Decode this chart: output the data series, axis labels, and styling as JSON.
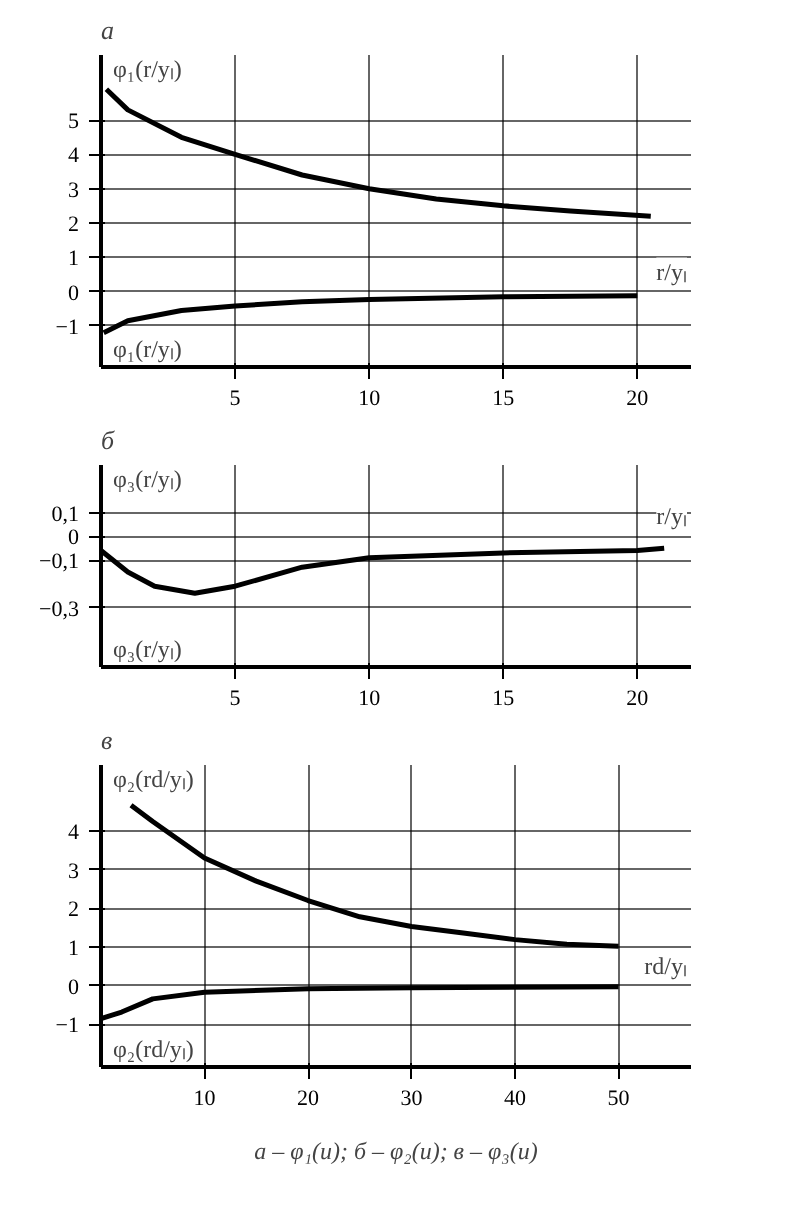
{
  "chart_data": [
    {
      "type": "line",
      "title": "а",
      "ylabel": "φ₁(r/yₗ)",
      "xlabel": "r/yₗ",
      "annotations": [
        "φ₁(r/yₗ)"
      ],
      "xlim": [
        0,
        22
      ],
      "ylim": [
        -2.2,
        6.9
      ],
      "xticks": [
        5,
        10,
        15,
        20
      ],
      "yticks": [
        {
          "value": -1,
          "label": "−1"
        },
        0,
        1,
        2,
        3,
        4,
        5
      ],
      "grid": true,
      "series": [
        {
          "color": "#000000",
          "x": [
            0.2,
            1,
            3,
            5,
            7.5,
            10,
            12.5,
            15,
            17.5,
            20.5
          ],
          "values": [
            5.9,
            5.3,
            4.5,
            4.0,
            3.4,
            3.0,
            2.7,
            2.5,
            2.35,
            2.2
          ]
        },
        {
          "color": "#000000",
          "x": [
            0.1,
            1,
            3,
            5,
            7.5,
            10,
            15,
            20
          ],
          "values": [
            -1.2,
            -0.85,
            -0.55,
            -0.42,
            -0.3,
            -0.23,
            -0.15,
            -0.12
          ]
        }
      ]
    },
    {
      "type": "line",
      "title": "б",
      "ylabel": "φ₃(r/yₗ)",
      "xlabel": "r/yₗ",
      "annotations": [
        "φ₃(r/yₗ)"
      ],
      "xlim": [
        0,
        22
      ],
      "ylim": [
        -0.55,
        0.3
      ],
      "xticks": [
        5,
        10,
        15,
        20
      ],
      "yticks": [
        {
          "value": 0.1,
          "label": "0,1"
        },
        0,
        {
          "value": -0.1,
          "label": "−0,1"
        },
        {
          "value": -0.3,
          "label": "−0,3"
        }
      ],
      "grid": true,
      "series": [
        {
          "color": "#000000",
          "x": [
            0,
            1,
            2,
            3.5,
            5,
            7.5,
            10,
            15,
            20,
            21
          ],
          "values": [
            -0.06,
            -0.15,
            -0.21,
            -0.24,
            -0.21,
            -0.13,
            -0.09,
            -0.07,
            -0.06,
            -0.05
          ]
        }
      ]
    },
    {
      "type": "line",
      "title": "в",
      "ylabel": "φ₂(rd/yₗ)",
      "xlabel": "rd/yₗ",
      "annotations": [
        "φ₂(rd/yₗ)"
      ],
      "xlim": [
        0,
        57
      ],
      "ylim": [
        -2.1,
        5.7
      ],
      "xticks": [
        10,
        20,
        30,
        40,
        50
      ],
      "yticks": [
        {
          "value": -1,
          "label": "−1"
        },
        0,
        1,
        2,
        3,
        4
      ],
      "grid": true,
      "series": [
        {
          "color": "#000000",
          "x": [
            2.9,
            5,
            10,
            15,
            20,
            25,
            30,
            35,
            40,
            45,
            50
          ],
          "values": [
            4.66,
            4.24,
            3.3,
            2.7,
            2.2,
            1.78,
            1.53,
            1.36,
            1.19,
            1.07,
            1.02
          ]
        },
        {
          "color": "#000000",
          "x": [
            0,
            2,
            5,
            10,
            20,
            30,
            50
          ],
          "values": [
            -0.85,
            -0.68,
            -0.34,
            -0.17,
            -0.08,
            -0.05,
            -0.03
          ]
        }
      ]
    },
    {
      "type": "other",
      "annotations": [
        "а – φ₁(u); б – φ₂(u); в – φ₃(u)"
      ]
    }
  ]
}
